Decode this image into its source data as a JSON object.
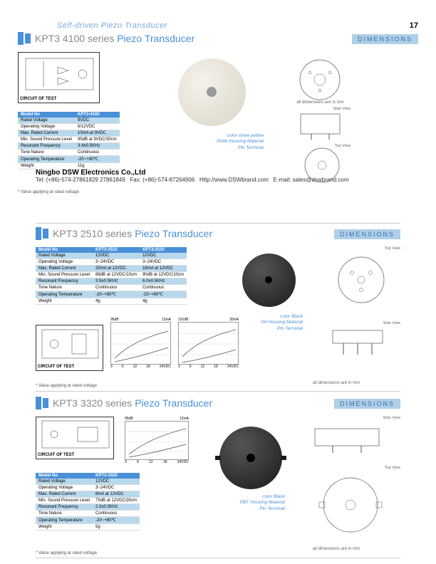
{
  "page": {
    "number": "17",
    "category_title": "Self-driven Piezo Transducer"
  },
  "footer": {
    "company": "Ningbo DSW Electronics Co.,Ltd",
    "tel": "Tel: (+86)-574-27861829  27861849",
    "fax": "Fax: (+86)-574-87264906",
    "web": "Http://www.DSWbrand.com",
    "email": "E-mail: sales@dswbrand.com"
  },
  "sections": [
    {
      "series": "KPT3  4100 series",
      "type": "Piezo Transducer",
      "dim_label": "DIMENSIONS",
      "circuit_label": "CIRCUIT OF TEST",
      "footnote": "* Value applying at rated voltage",
      "dim_note": "all dimensions are in mm",
      "description": [
        "color straw yellow",
        "PA66 Housing Material",
        "Pin Terminal"
      ],
      "views": {
        "bottom": "Bottom View",
        "side": "Side View",
        "top": "Top View"
      },
      "table": {
        "headers": [
          "Model No",
          "KPT3-4100"
        ],
        "rows": [
          {
            "hl": true,
            "cells": [
              "Rated Voltage",
              "9VDC"
            ]
          },
          {
            "hl": false,
            "cells": [
              "Operating Voltage",
              "6/12VDC"
            ]
          },
          {
            "hl": true,
            "cells": [
              "Max. Rated Current",
              "10mA at 9VDC"
            ]
          },
          {
            "hl": false,
            "cells": [
              "Min. Sound Pressure Level",
              "95dB at 9VDC/30cm"
            ]
          },
          {
            "hl": true,
            "cells": [
              "Resonant Frequency",
              "3.4±0.5KHz"
            ]
          },
          {
            "hl": false,
            "cells": [
              "Tone Nature",
              "Continuous"
            ]
          },
          {
            "hl": true,
            "cells": [
              "Operating Temperature",
              "-20~+60℃"
            ]
          },
          {
            "hl": false,
            "cells": [
              "Weight",
              "11g"
            ]
          }
        ]
      },
      "photo_color": "#e8e4db"
    },
    {
      "series": "KPT3  2510  series",
      "type": "Piezo Transducer",
      "dim_label": "DIMENSIONS",
      "circuit_label": "CIRCUIT OF TEST",
      "footnote": "* Value applying at rated voltage",
      "dim_note": "all dimensions are in mm",
      "description": [
        "color Black",
        "PA Housing Material",
        "Pin Terminal"
      ],
      "views": {
        "top": "Top View",
        "side": "Side View"
      },
      "table": {
        "headers": [
          "Model No",
          "KPT3-2512",
          "KPT3-2510"
        ],
        "rows": [
          {
            "hl": true,
            "cells": [
              "Rated Voltage",
              "12VDC",
              "12VDC"
            ]
          },
          {
            "hl": false,
            "cells": [
              "Operating Voltage",
              "3~24VDC",
              "3~24VDC"
            ]
          },
          {
            "hl": true,
            "cells": [
              "Max. Rated Current",
              "25mA at 12VDC",
              "18mA at 12VDC"
            ]
          },
          {
            "hl": false,
            "cells": [
              "Min. Sound Pressure Level",
              "88dB at 12VDC/10cm",
              "90dB at 12VDC/10cm"
            ]
          },
          {
            "hl": true,
            "cells": [
              "Resonant Frequency",
              "3.5±0.5KHz",
              "6.0±0.5KHz"
            ]
          },
          {
            "hl": false,
            "cells": [
              "Tone Nature",
              "Continuous",
              "Continuous"
            ]
          },
          {
            "hl": true,
            "cells": [
              "Operating Temperature",
              "-20~+80℃",
              "-20~+80℃"
            ]
          },
          {
            "hl": false,
            "cells": [
              "Weight",
              "4g",
              "4g"
            ]
          }
        ]
      },
      "charts": [
        {
          "ylabel_top": "95dB",
          "ylabel_right": "12mA",
          "xvals": [
            "3",
            "6",
            "12",
            "18",
            "24VDC"
          ]
        },
        {
          "ylabel_top": "101dB",
          "ylabel_right": "30mA",
          "xvals": [
            "3",
            "6",
            "12",
            "18",
            "24VDC"
          ]
        }
      ],
      "photo_color": "#2a2a2a"
    },
    {
      "series": "KPT3  3320 series",
      "type": "Piezo Transducer",
      "dim_label": "DIMENSIONS",
      "circuit_label": "CIRCUIT OF TEST",
      "footnote": "* Value applying at rated voltage",
      "dim_note": "all dimensions are in mm",
      "description": [
        "color Black",
        "PBT Housing Material",
        "Pin Terminal"
      ],
      "views": {
        "side": "Side View",
        "top": "Top View"
      },
      "table": {
        "headers": [
          "Model No",
          "KPT3-3320"
        ],
        "rows": [
          {
            "hl": true,
            "cells": [
              "Rated Voltage",
              "12VDC"
            ]
          },
          {
            "hl": false,
            "cells": [
              "Operating Voltage",
              "3~24VDC"
            ]
          },
          {
            "hl": true,
            "cells": [
              "Max. Rated Current",
              "8mA at 12VDC"
            ]
          },
          {
            "hl": false,
            "cells": [
              "Min. Sound Pressure Level",
              "75dB at 12VDC/30cm"
            ]
          },
          {
            "hl": true,
            "cells": [
              "Resonant Frequency",
              "2.0±0.5KHz"
            ]
          },
          {
            "hl": false,
            "cells": [
              "Tone Nature",
              "Continuous"
            ]
          },
          {
            "hl": true,
            "cells": [
              "Operating Temperature",
              "-20~+80℃"
            ]
          },
          {
            "hl": false,
            "cells": [
              "Weight",
              "5g"
            ]
          }
        ]
      },
      "charts": [
        {
          "ylabel_top": "95dB",
          "ylabel_right": "12mA",
          "xvals": [
            "3",
            "6",
            "12",
            "18",
            "24VDC"
          ]
        }
      ],
      "photo_color": "#2a2a2a"
    }
  ],
  "colors": {
    "primary": "#4a90d9",
    "light": "#b8d9ed",
    "header_bg": "#b0cfe8"
  }
}
